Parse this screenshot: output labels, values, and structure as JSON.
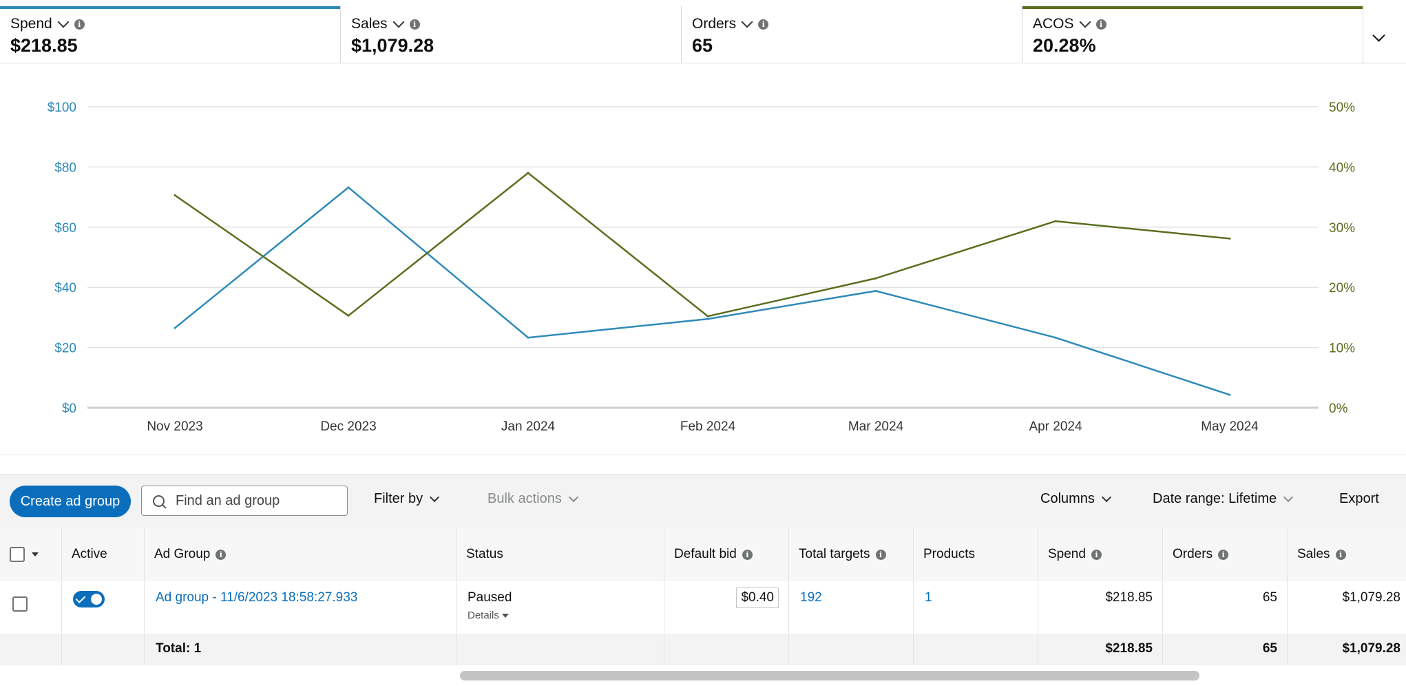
{
  "metrics": [
    {
      "label": "Spend",
      "value": "$218.85",
      "color": "#2e8ab8"
    },
    {
      "label": "Sales",
      "value": "$1,079.28",
      "color": ""
    },
    {
      "label": "Orders",
      "value": "65",
      "color": ""
    },
    {
      "label": "ACOS",
      "value": "20.28%",
      "color": "#5a6e1e"
    }
  ],
  "chart_data": {
    "type": "line",
    "categories": [
      "Nov 2023",
      "Dec 2023",
      "Jan 2024",
      "Feb 2024",
      "Mar 2024",
      "Apr 2024",
      "May 2024"
    ],
    "series": [
      {
        "name": "Spend",
        "axis": "left",
        "color": "#2e8ab8",
        "values": [
          26.5,
          73.2,
          23.3,
          29.5,
          38.8,
          23.3,
          4.3
        ]
      },
      {
        "name": "ACOS",
        "axis": "right",
        "color": "#5a6e1e",
        "values": [
          35.3,
          15.3,
          39.0,
          15.2,
          21.5,
          31.0,
          28.1
        ]
      }
    ],
    "left_axis": {
      "ticks": [
        "$0",
        "$20",
        "$40",
        "$60",
        "$80",
        "$100"
      ],
      "ylim": [
        0,
        100
      ]
    },
    "right_axis": {
      "ticks": [
        "0%",
        "10%",
        "20%",
        "30%",
        "40%",
        "50%"
      ],
      "ylim": [
        0,
        50
      ]
    },
    "grid": true
  },
  "toolbar": {
    "create_label": "Create ad group",
    "search_placeholder": "Find an ad group",
    "filter_label": "Filter by",
    "bulk_label": "Bulk actions",
    "columns_label": "Columns",
    "date_label": "Date range: Lifetime",
    "export_label": "Export"
  },
  "table": {
    "headers": {
      "active": "Active",
      "ad_group": "Ad Group",
      "status": "Status",
      "default_bid": "Default bid",
      "total_targets": "Total targets",
      "products": "Products",
      "spend": "Spend",
      "orders": "Orders",
      "sales": "Sales"
    },
    "rows": [
      {
        "ad_group": "Ad group - 11/6/2023 18:58:27.933",
        "status": "Paused",
        "details": "Details",
        "default_bid": "$0.40",
        "total_targets": "192",
        "products": "1",
        "spend": "$218.85",
        "orders": "65",
        "sales": "$1,079.28"
      }
    ],
    "total": {
      "label": "Total: 1",
      "spend": "$218.85",
      "orders": "65",
      "sales": "$1,079.28"
    }
  }
}
